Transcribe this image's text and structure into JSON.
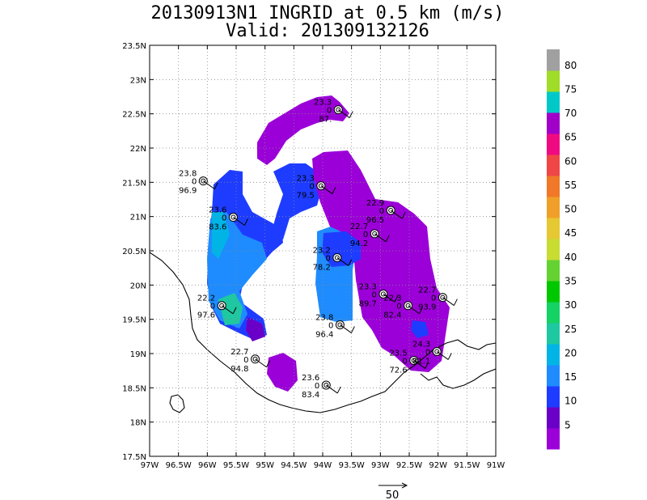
{
  "title": "20130913N1 INGRID at 0.5 km (m/s)",
  "subtitle": "Valid: 201309132126",
  "axes": {
    "lat_ticks": [
      "17.5N",
      "18N",
      "18.5N",
      "19N",
      "19.5N",
      "20N",
      "20.5N",
      "21N",
      "21.5N",
      "22N",
      "22.5N",
      "23N",
      "23.5N"
    ],
    "lon_ticks": [
      "97W",
      "96.5W",
      "96W",
      "95.5W",
      "95W",
      "94.5W",
      "94W",
      "93.5W",
      "93W",
      "92.5W",
      "92W",
      "91.5W",
      "91W"
    ],
    "lat_range": [
      17.5,
      23.5
    ],
    "lon_range": [
      -97,
      -91
    ],
    "grid": "dotted"
  },
  "colorbar": {
    "labels": [
      "5",
      "10",
      "15",
      "20",
      "25",
      "30",
      "35",
      "40",
      "45",
      "50",
      "55",
      "60",
      "65",
      "70",
      "75",
      "80"
    ],
    "colors": [
      "#9b00d8",
      "#6a00c8",
      "#1e3cff",
      "#1e8cff",
      "#00b4e6",
      "#1ec8a0",
      "#14d264",
      "#00c800",
      "#64d232",
      "#c8dc32",
      "#e6c832",
      "#f0a028",
      "#f07828",
      "#f04646",
      "#f00a82",
      "#a000c8",
      "#00c8c8",
      "#a0dc28",
      "#a0a0a0"
    ]
  },
  "stations": [
    {
      "lon": -96.07,
      "lat": 21.52,
      "top": "23.8",
      "mid": "0",
      "bottom": "96.9"
    },
    {
      "lon": -94.03,
      "lat": 21.45,
      "top": "23.3",
      "mid": "0",
      "bottom": "79.5"
    },
    {
      "lon": -93.73,
      "lat": 22.56,
      "top": "23.3",
      "mid": "0",
      "bottom": "87."
    },
    {
      "lon": -95.55,
      "lat": 20.99,
      "top": "23.6",
      "mid": "0",
      "bottom": "83.6"
    },
    {
      "lon": -92.82,
      "lat": 21.09,
      "top": "22.9",
      "mid": "0",
      "bottom": "96.5"
    },
    {
      "lon": -93.1,
      "lat": 20.75,
      "top": "22.7",
      "mid": "0",
      "bottom": "94.2"
    },
    {
      "lon": -93.75,
      "lat": 20.4,
      "top": "23.2",
      "mid": "0",
      "bottom": "78.2"
    },
    {
      "lon": -95.75,
      "lat": 19.7,
      "top": "22.2",
      "mid": "0",
      "bottom": "97.6"
    },
    {
      "lon": -92.95,
      "lat": 19.87,
      "top": "23.3",
      "mid": "0",
      "bottom": "89.7"
    },
    {
      "lon": -92.52,
      "lat": 19.7,
      "top": "22.3",
      "mid": "0",
      "bottom": "82.4"
    },
    {
      "lon": -91.92,
      "lat": 19.82,
      "top": "22.7",
      "mid": "0",
      "bottom": "93.9"
    },
    {
      "lon": -93.7,
      "lat": 19.42,
      "top": "23.8",
      "mid": "0",
      "bottom": "96.4"
    },
    {
      "lon": -92.42,
      "lat": 18.9,
      "top": "23.5",
      "mid": "0",
      "bottom": "72.6"
    },
    {
      "lon": -92.02,
      "lat": 19.03,
      "top": "24.3",
      "mid": "0",
      "bottom": "81.1"
    },
    {
      "lon": -95.17,
      "lat": 18.92,
      "top": "22.7",
      "mid": "0",
      "bottom": "94.8"
    },
    {
      "lon": -93.94,
      "lat": 18.54,
      "top": "23.6",
      "mid": "0",
      "bottom": "83.4"
    }
  ],
  "reference_vector": {
    "label": "50"
  }
}
